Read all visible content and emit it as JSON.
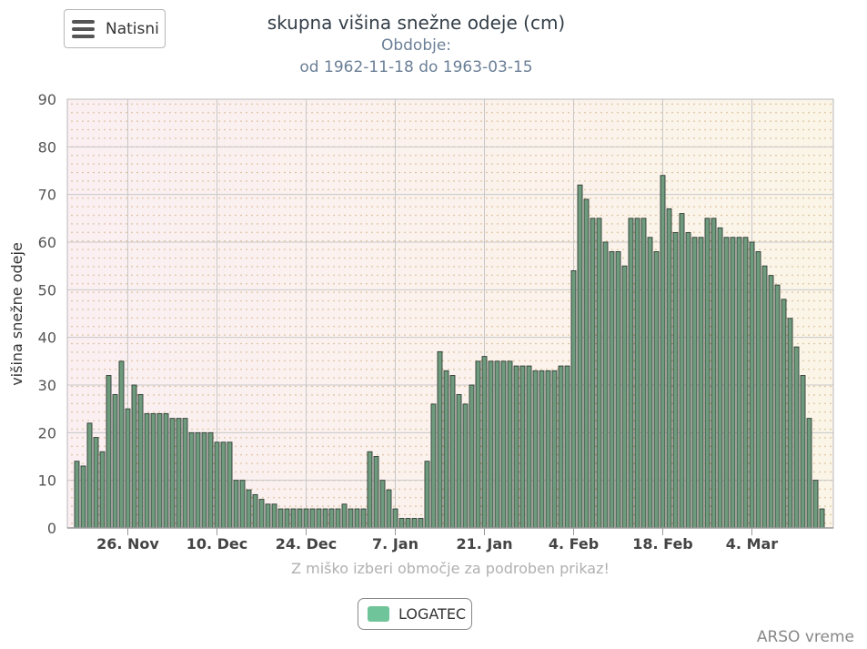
{
  "menu": {
    "print_label": "Natisni"
  },
  "chart_data": {
    "type": "bar",
    "title": "skupna višina snežne odeje (cm)",
    "subtitle_line1": "Obdobje:",
    "subtitle_line2": "od 1962-11-18 do 1963-03-15",
    "ylabel": "višina snežne odeje",
    "ylim": [
      0,
      90
    ],
    "yticks": [
      0,
      10,
      20,
      30,
      40,
      50,
      60,
      70,
      80,
      90
    ],
    "x_start": "1962-11-18",
    "xtick_labels": [
      "26. Nov",
      "10. Dec",
      "24. Dec",
      "7. Jan",
      "21. Jan",
      "4. Feb",
      "18. Feb",
      "4. Mar"
    ],
    "xtick_dates": [
      "1962-11-26",
      "1962-12-10",
      "1962-12-24",
      "1963-01-07",
      "1963-01-21",
      "1963-02-04",
      "1963-02-18",
      "1963-03-04"
    ],
    "grid": true,
    "legend_position": "bottom-center",
    "series": [
      {
        "name": "LOGATEC",
        "color": "#70c499",
        "values": [
          14,
          13,
          22,
          19,
          16,
          32,
          28,
          35,
          25,
          30,
          28,
          24,
          24,
          24,
          24,
          23,
          23,
          23,
          20,
          20,
          20,
          20,
          18,
          18,
          18,
          10,
          10,
          8,
          7,
          6,
          5,
          5,
          4,
          4,
          4,
          4,
          4,
          4,
          4,
          4,
          4,
          4,
          5,
          4,
          4,
          4,
          16,
          15,
          10,
          8,
          4,
          2,
          2,
          2,
          2,
          14,
          26,
          37,
          33,
          32,
          28,
          26,
          30,
          35,
          36,
          35,
          35,
          35,
          35,
          34,
          34,
          34,
          33,
          33,
          33,
          33,
          34,
          34,
          54,
          72,
          69,
          65,
          65,
          60,
          58,
          58,
          55,
          65,
          65,
          65,
          61,
          58,
          74,
          67,
          62,
          66,
          62,
          61,
          61,
          65,
          65,
          63,
          61,
          61,
          61,
          61,
          60,
          58,
          55,
          53,
          51,
          48,
          44,
          38,
          32,
          23,
          10,
          4
        ]
      }
    ]
  },
  "hint": "Z miško izberi območje za podroben prikaz!",
  "credits": "ARSO vreme"
}
